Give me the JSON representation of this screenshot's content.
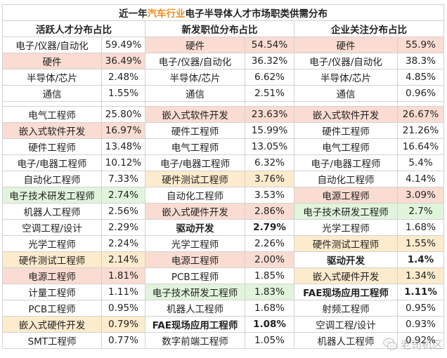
{
  "title": {
    "prefix": "近一年",
    "highlight": "汽车行业",
    "suffix": "电子半导体人才市场职类供需分布"
  },
  "headers": [
    "活跃人才分布占比",
    "新发职位分布占比",
    "企业关注分布占比"
  ],
  "rows": [
    [
      {
        "n": "电子/仪器/自动化",
        "v": "59.49%"
      },
      {
        "n": "硬件",
        "v": "54.54%"
      },
      {
        "n": "硬件",
        "v": "55.9%"
      }
    ],
    [
      {
        "n": "硬件",
        "v": "36.49%"
      },
      {
        "n": "电子/仪器/自动化",
        "v": "36.32%"
      },
      {
        "n": "电子/仪器/自动化",
        "v": "38.3%"
      }
    ],
    [
      {
        "n": "半导体/芯片",
        "v": "2.48%"
      },
      {
        "n": "半导体/芯片",
        "v": "6.62%"
      },
      {
        "n": "半导体/芯片",
        "v": "4.85%"
      }
    ],
    [
      {
        "n": "通信",
        "v": "1.55%"
      },
      {
        "n": "通信",
        "v": "2.51%"
      },
      {
        "n": "通信",
        "v": "0.96%"
      }
    ],
    null,
    [
      {
        "n": "电气工程师",
        "v": "25.80%"
      },
      {
        "n": "嵌入式软件开发",
        "v": "23.63%"
      },
      {
        "n": "嵌入式软件开发",
        "v": "26.67%"
      }
    ],
    [
      {
        "n": "嵌入式软件开发",
        "v": "16.97%"
      },
      {
        "n": "硬件工程师",
        "v": "15.99%"
      },
      {
        "n": "硬件工程师",
        "v": "21.26%"
      }
    ],
    [
      {
        "n": "硬件工程师",
        "v": "13.48%"
      },
      {
        "n": "电气工程师",
        "v": "13.05%"
      },
      {
        "n": "电气工程师",
        "v": "16.64%"
      }
    ],
    [
      {
        "n": "电子/电器工程师",
        "v": "10.12%"
      },
      {
        "n": "电子/电器工程师",
        "v": "6.32%"
      },
      {
        "n": "电子/电器工程师",
        "v": "5.4%"
      }
    ],
    [
      {
        "n": "自动化工程师",
        "v": "7.33%"
      },
      {
        "n": "硬件测试工程师",
        "v": "3.76%"
      },
      {
        "n": "自动化工程师",
        "v": "4.14%"
      }
    ],
    [
      {
        "n": "电子技术研发工程师",
        "v": "2.74%"
      },
      {
        "n": "自动化工程师",
        "v": "3.53%"
      },
      {
        "n": "电源工程师",
        "v": "3.09%"
      }
    ],
    [
      {
        "n": "机器人工程师",
        "v": "2.56%"
      },
      {
        "n": "嵌入式硬件开发",
        "v": "2.86%"
      },
      {
        "n": "电子技术研发工程师",
        "v": "2.7%"
      }
    ],
    [
      {
        "n": "空调工程/设计",
        "v": "2.29%"
      },
      {
        "n": "驱动开发",
        "v": "2.79%"
      },
      {
        "n": "光学工程师",
        "v": "1.68%"
      }
    ],
    [
      {
        "n": "光学工程师",
        "v": "2.24%"
      },
      {
        "n": "光学工程师",
        "v": "2.26%"
      },
      {
        "n": "硬件测试工程师",
        "v": "1.55%"
      }
    ],
    [
      {
        "n": "硬件测试工程师",
        "v": "2.14%"
      },
      {
        "n": "电源工程师",
        "v": "2.00%"
      },
      {
        "n": "驱动开发",
        "v": "1.4%"
      }
    ],
    [
      {
        "n": "电源工程师",
        "v": "1.81%"
      },
      {
        "n": "PCB工程师",
        "v": "1.85%"
      },
      {
        "n": "嵌入式硬件开发",
        "v": "1.34%"
      }
    ],
    [
      {
        "n": "计量工程师",
        "v": "1.11%"
      },
      {
        "n": "电子技术研发工程师",
        "v": "1.83%"
      },
      {
        "n": "FAE现场应用工程师",
        "v": "1.11%"
      }
    ],
    [
      {
        "n": "PCB工程师",
        "v": "0.95%"
      },
      {
        "n": "机器人工程师",
        "v": "1.68%"
      },
      {
        "n": "射频工程师",
        "v": "0.95%"
      }
    ],
    [
      {
        "n": "嵌入式硬件开发",
        "v": "0.79%"
      },
      {
        "n": "FAE现场应用工程师",
        "v": "1.08%"
      },
      {
        "n": "空调工程/设计",
        "v": "0.93%"
      }
    ],
    [
      {
        "n": "SMT工程师",
        "v": "0.77%"
      },
      {
        "n": "数字前端工程师",
        "v": "1.05%"
      },
      {
        "n": "机器人工程师",
        "v": "0.92%"
      }
    ]
  ],
  "highlights": {
    "pink": "#fadcd2",
    "yellow": "#fcebcc",
    "green": "#e1f4dc",
    "accent": "#f08a1a"
  },
  "watermark": {
    "text": "老司机区",
    "icon": "wechat-icon"
  }
}
